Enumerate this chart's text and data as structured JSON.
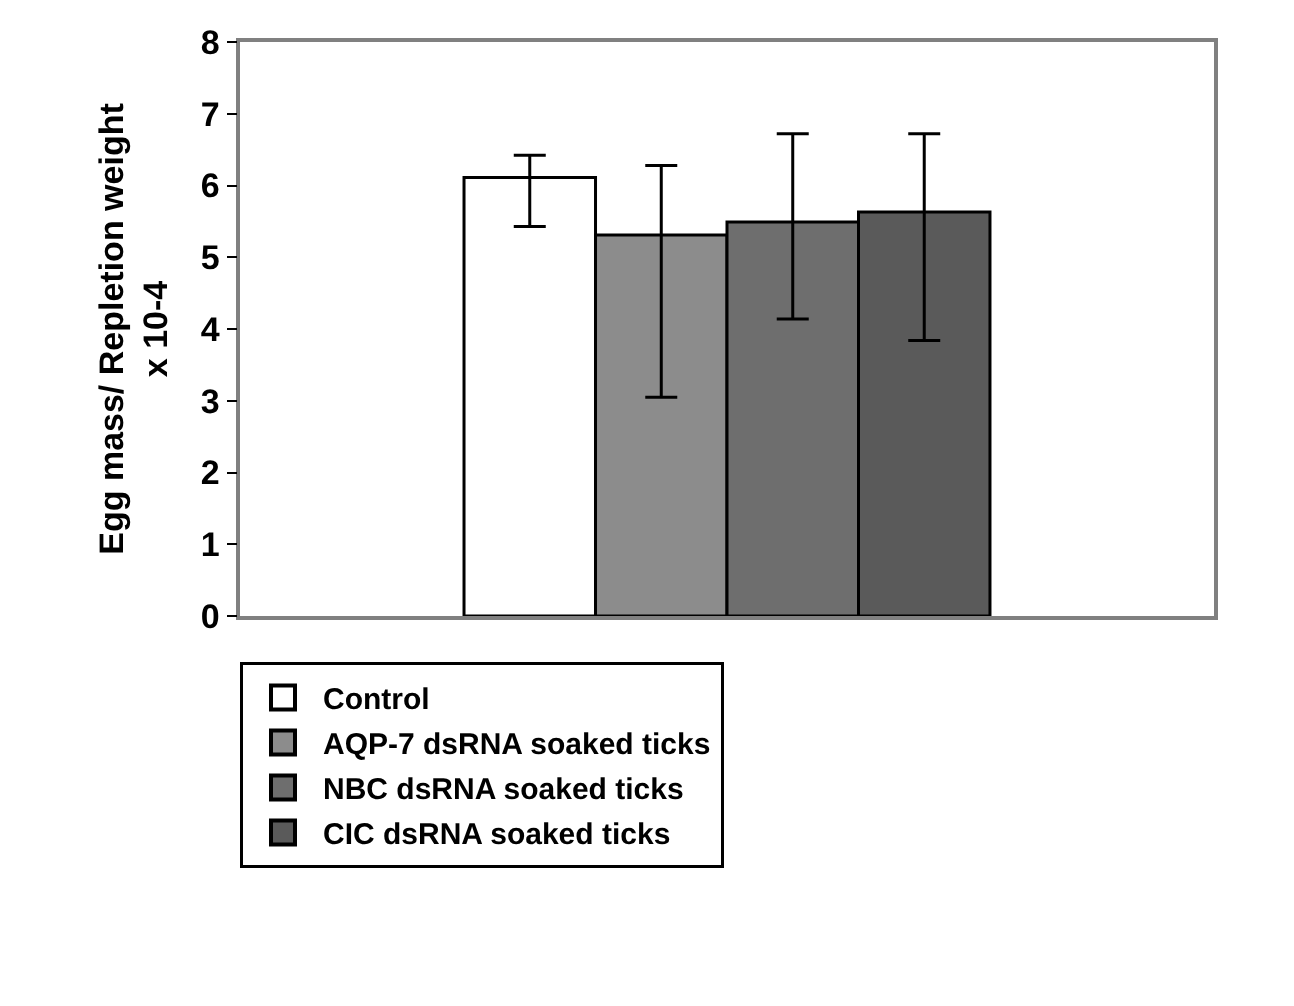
{
  "chart_data": {
    "type": "bar",
    "ylabel": "Egg mass/ Repletion weight\nx 10-4",
    "categories": [
      null
    ],
    "series": [
      {
        "name": "Control",
        "color": "#ffffff",
        "values": [
          6.11
        ],
        "errors": [
          [
            5.43,
            6.42
          ]
        ]
      },
      {
        "name": "AQP-7 dsRNA soaked ticks",
        "color": "#8c8c8c",
        "values": [
          5.31
        ],
        "errors": [
          [
            3.05,
            6.28
          ]
        ]
      },
      {
        "name": "NBC dsRNA soaked ticks",
        "color": "#6e6e6e",
        "values": [
          5.49
        ],
        "errors": [
          [
            4.14,
            6.72
          ]
        ]
      },
      {
        "name": "CIC dsRNA soaked ticks",
        "color": "#5a5a5a",
        "values": [
          5.63
        ],
        "errors": [
          [
            3.84,
            6.72
          ]
        ]
      }
    ],
    "ylim": [
      0,
      8
    ],
    "yticks": [
      0,
      1,
      2,
      3,
      4,
      5,
      6,
      7,
      8
    ],
    "legend": "bottom left",
    "tick_labels": "y"
  }
}
